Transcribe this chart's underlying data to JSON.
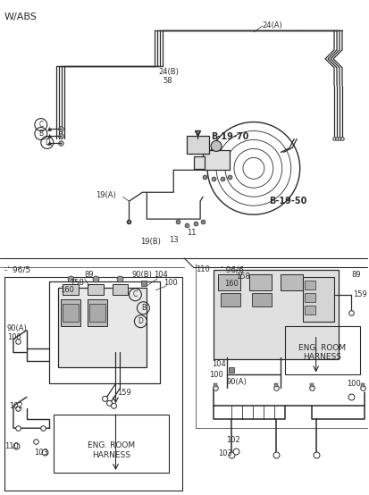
{
  "bg_color": "#f5f5f0",
  "lc": "#2a2a2a",
  "labels": {
    "w_abs": "W/ABS",
    "b1970": "B-19-70",
    "b1950": "B-19-50",
    "96_5": "-’ 96/5",
    "96_6": "’ 96/6-",
    "24a": "24(A)",
    "24b": "24(B)",
    "58": "58",
    "19a": "19(A)",
    "19b": "19(B)",
    "13": "13",
    "11": "11",
    "89": "89",
    "158": "158",
    "160": "160",
    "159": "159",
    "90b": "90(B)",
    "90a": "90(A)",
    "100": "100",
    "104": "104",
    "102": "102",
    "103": "103",
    "110": "110",
    "eng_harness": "ENG. ROOM\nHARNESS"
  }
}
